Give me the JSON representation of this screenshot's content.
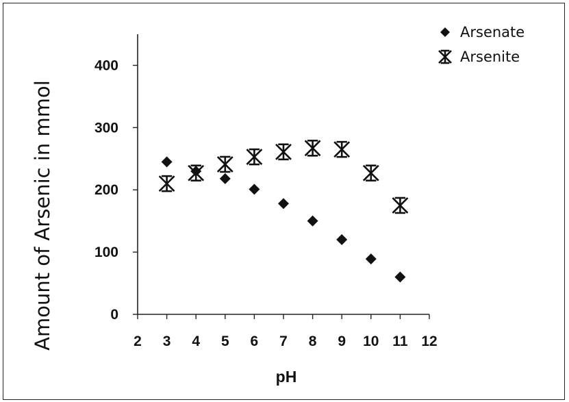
{
  "chart_data": {
    "type": "scatter",
    "title": "",
    "xlabel": "pH",
    "ylabel": "Amount of Arsenic in mmol",
    "xlim": [
      2,
      12
    ],
    "ylim": [
      0,
      450
    ],
    "x_ticks": [
      "2",
      "3",
      "4",
      "5",
      "6",
      "7",
      "8",
      "9",
      "10",
      "11",
      "12"
    ],
    "y_ticks": [
      "0",
      "100",
      "200",
      "300",
      "400"
    ],
    "legend_position": "top-right",
    "grid": false,
    "series": [
      {
        "name": "Arsenate",
        "marker": "diamond",
        "color": "#111111",
        "x": [
          3,
          4,
          5,
          6,
          7,
          8,
          9,
          10,
          11
        ],
        "y": [
          245,
          230,
          218,
          201,
          178,
          150,
          120,
          89,
          60
        ]
      },
      {
        "name": "Arsenite",
        "marker": "asterisk",
        "color": "#111111",
        "x": [
          3,
          4,
          5,
          6,
          7,
          8,
          9,
          10,
          11
        ],
        "y": [
          210,
          227,
          241,
          253,
          261,
          267,
          265,
          227,
          175
        ]
      }
    ]
  }
}
